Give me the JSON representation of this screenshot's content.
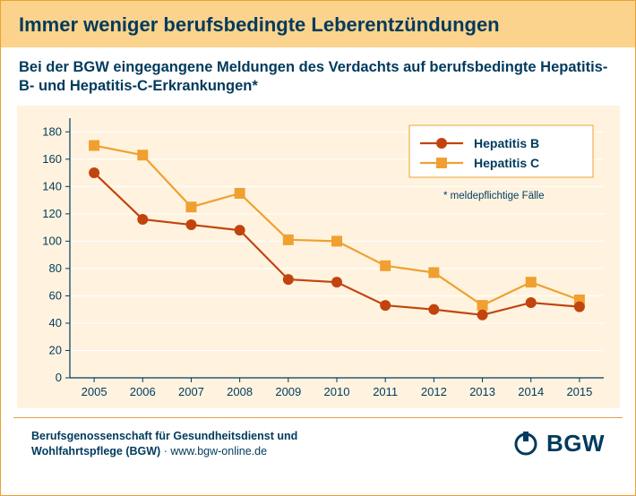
{
  "title": "Immer weniger berufsbedingte Leberentzündungen",
  "subtitle": "Bei der BGW eingegangene Meldungen des Verdachts auf berufsbedingte Hepatitis-B- und Hepatitis-C-Erkrankungen*",
  "chart": {
    "type": "line",
    "background_color": "#fff3df",
    "grid_color": "#ffffff",
    "axis_color": "#003a5d",
    "text_color": "#003a5d",
    "x_categories": [
      "2005",
      "2006",
      "2007",
      "2008",
      "2009",
      "2010",
      "2011",
      "2012",
      "2013",
      "2014",
      "2015"
    ],
    "y_ticks": [
      0,
      20,
      40,
      60,
      80,
      100,
      120,
      140,
      160,
      180
    ],
    "ylim": [
      0,
      190
    ],
    "series": [
      {
        "name": "Hepatitis B",
        "color": "#c1440e",
        "marker": "circle",
        "marker_size": 6,
        "line_width": 2.2,
        "values": [
          150,
          116,
          112,
          108,
          72,
          70,
          53,
          50,
          46,
          55,
          52
        ]
      },
      {
        "name": "Hepatitis C",
        "color": "#f0a030",
        "marker": "square",
        "marker_size": 6,
        "line_width": 2.2,
        "values": [
          170,
          163,
          125,
          135,
          101,
          100,
          82,
          77,
          53,
          70,
          57
        ]
      }
    ],
    "legend": {
      "items": [
        "Hepatitis B",
        "Hepatitis C"
      ],
      "box_stroke": "#f0a030",
      "box_fill": "#ffffff"
    },
    "footnote": "* meldepflichtige Fälle"
  },
  "footer": {
    "org_line1": "Berufsgenossenschaft für Gesundheitsdienst und",
    "org_line2": "Wohlfahrtspflege (BGW)",
    "url": "www.bgw-online.de",
    "separator": " · ",
    "logo_text": "BGW"
  }
}
